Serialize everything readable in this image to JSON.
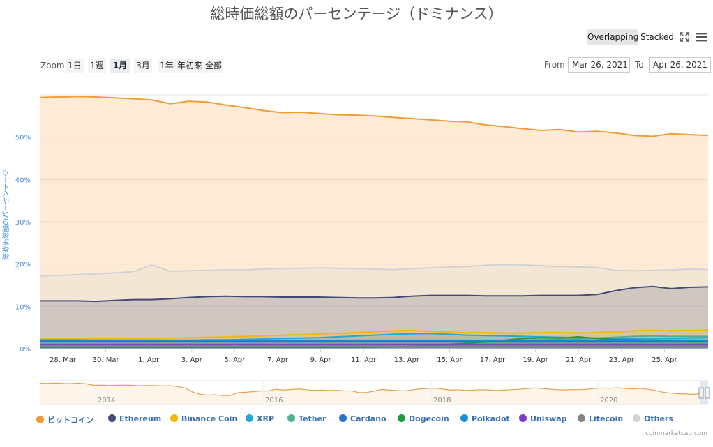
{
  "chart_data": {
    "type": "area",
    "title": "総時価総額のパーセンテージ（ドミナンス）",
    "ylabel": "総時価総額のパーセンテージ",
    "ylim": [
      0,
      60
    ],
    "y_ticks": [
      "0%",
      "10%",
      "20%",
      "30%",
      "40%",
      "50%"
    ],
    "x_ticks": [
      "28. Mar",
      "30. Mar",
      "1. Apr",
      "3. Apr",
      "5. Apr",
      "7. Apr",
      "9. Apr",
      "11. Apr",
      "13. Apr",
      "15. Apr",
      "17. Apr",
      "19. Apr",
      "21. Apr",
      "23. Apr",
      "25. Apr"
    ],
    "x_start": "2021-03-26",
    "x_end": "2021-04-26",
    "grid": true,
    "legend_position": "bottom",
    "series": [
      {
        "name": "ビットコイン",
        "color": "#f39c34",
        "values": [
          59.4,
          59.5,
          59.6,
          59.5,
          59.3,
          59.1,
          58.8,
          57.9,
          58.5,
          58.3,
          57.6,
          57.0,
          56.3,
          55.8,
          55.9,
          55.6,
          55.3,
          55.2,
          55.0,
          54.7,
          54.4,
          54.1,
          53.8,
          53.6,
          52.9,
          52.5,
          52.0,
          51.6,
          51.8,
          51.2,
          51.4,
          51.0,
          50.4,
          50.2,
          50.8,
          50.6,
          50.4
        ]
      },
      {
        "name": "Others",
        "color": "#d2d2d2",
        "values": [
          17.2,
          17.3,
          17.5,
          17.7,
          17.9,
          18.2,
          19.8,
          18.3,
          18.4,
          18.5,
          18.6,
          18.6,
          18.8,
          18.9,
          19.0,
          19.1,
          19.0,
          18.9,
          18.8,
          18.7,
          18.9,
          19.1,
          19.3,
          19.4,
          19.7,
          19.9,
          19.8,
          19.6,
          19.4,
          19.3,
          19.2,
          18.5,
          18.4,
          18.5,
          18.6,
          18.8,
          18.7
        ]
      },
      {
        "name": "Ethereum",
        "color": "#454a75",
        "values": [
          11.3,
          11.3,
          11.3,
          11.2,
          11.4,
          11.6,
          11.6,
          11.8,
          12.1,
          12.3,
          12.4,
          12.3,
          12.3,
          12.2,
          12.2,
          12.2,
          12.1,
          12.0,
          12.0,
          12.1,
          12.4,
          12.6,
          12.6,
          12.6,
          12.5,
          12.5,
          12.5,
          12.6,
          12.6,
          12.6,
          12.8,
          13.7,
          14.4,
          14.7,
          14.2,
          14.5,
          14.6
        ]
      },
      {
        "name": "Binance Coin",
        "color": "#f0b90b",
        "values": [
          2.3,
          2.3,
          2.3,
          2.3,
          2.4,
          2.4,
          2.4,
          2.5,
          2.6,
          2.7,
          2.8,
          2.9,
          3.0,
          3.2,
          3.3,
          3.5,
          3.6,
          3.8,
          4.0,
          4.2,
          4.3,
          4.1,
          3.9,
          3.8,
          3.8,
          3.7,
          3.7,
          3.8,
          3.8,
          3.7,
          3.8,
          4.0,
          4.2,
          4.3,
          4.2,
          4.3,
          4.4
        ]
      },
      {
        "name": "XRP",
        "color": "#23a7df",
        "values": [
          2.0,
          2.0,
          2.0,
          2.0,
          2.0,
          2.0,
          2.0,
          2.0,
          2.0,
          2.1,
          2.1,
          2.2,
          2.3,
          2.4,
          2.5,
          2.6,
          2.8,
          3.0,
          3.2,
          3.4,
          3.5,
          3.6,
          3.4,
          3.2,
          3.1,
          3.0,
          2.9,
          2.8,
          2.7,
          2.6,
          2.5,
          2.4,
          2.3,
          2.3,
          2.4,
          2.5,
          2.6
        ]
      },
      {
        "name": "Tether",
        "color": "#50af95",
        "values": [
          2.1,
          2.1,
          2.1,
          2.0,
          2.0,
          2.0,
          2.0,
          2.0,
          2.0,
          2.0,
          2.0,
          2.0,
          2.0,
          2.0,
          2.0,
          2.0,
          2.0,
          2.0,
          2.0,
          2.0,
          2.0,
          2.0,
          2.0,
          2.0,
          2.0,
          2.0,
          2.0,
          2.1,
          2.2,
          2.3,
          2.5,
          2.7,
          2.9,
          3.0,
          2.9,
          2.9,
          2.9
        ]
      },
      {
        "name": "Cardano",
        "color": "#2a71d0",
        "values": [
          1.7,
          1.7,
          1.7,
          1.7,
          1.7,
          1.7,
          1.7,
          1.7,
          1.7,
          1.7,
          1.7,
          1.7,
          1.7,
          1.7,
          1.7,
          1.7,
          1.7,
          1.7,
          1.7,
          1.7,
          1.7,
          1.7,
          1.7,
          1.7,
          1.7,
          1.7,
          1.7,
          1.7,
          1.7,
          1.7,
          1.7,
          1.7,
          1.7,
          1.7,
          1.7,
          1.7,
          1.7
        ]
      },
      {
        "name": "Dogecoin",
        "color": "#1a9e3f",
        "values": [
          0.3,
          0.3,
          0.3,
          0.3,
          0.3,
          0.3,
          0.3,
          0.3,
          0.3,
          0.3,
          0.3,
          0.3,
          0.3,
          0.3,
          0.3,
          0.3,
          0.3,
          0.3,
          0.4,
          0.5,
          0.6,
          0.8,
          1.0,
          1.3,
          1.6,
          2.0,
          2.4,
          2.6,
          2.5,
          2.8,
          2.4,
          2.2,
          2.1,
          1.9,
          2.0,
          2.0,
          2.0
        ]
      },
      {
        "name": "Polkadot",
        "color": "#1b8ed1",
        "values": [
          1.9,
          1.9,
          1.9,
          1.9,
          1.9,
          1.9,
          1.9,
          1.9,
          1.9,
          1.9,
          1.9,
          1.9,
          1.9,
          1.9,
          1.9,
          1.9,
          1.9,
          1.9,
          1.9,
          1.9,
          1.9,
          1.9,
          1.9,
          1.9,
          1.9,
          1.9,
          1.9,
          1.9,
          1.9,
          1.9,
          1.9,
          1.9,
          1.9,
          1.9,
          1.9,
          1.9,
          1.9
        ]
      },
      {
        "name": "Uniswap",
        "color": "#7e3ac9",
        "values": [
          1.0,
          1.0,
          1.0,
          1.0,
          1.0,
          1.0,
          1.0,
          1.0,
          1.0,
          1.0,
          1.0,
          1.0,
          1.0,
          1.0,
          1.0,
          1.0,
          1.0,
          1.0,
          1.0,
          1.0,
          1.0,
          1.0,
          1.0,
          1.0,
          1.0,
          1.0,
          1.0,
          1.0,
          1.0,
          1.0,
          1.0,
          1.0,
          1.0,
          1.0,
          1.0,
          1.0,
          1.0
        ]
      },
      {
        "name": "Litecoin",
        "color": "#838383",
        "values": [
          0.6,
          0.6,
          0.6,
          0.6,
          0.6,
          0.6,
          0.6,
          0.6,
          0.6,
          0.6,
          0.6,
          0.6,
          0.6,
          0.6,
          0.6,
          0.6,
          0.6,
          0.6,
          0.6,
          0.6,
          0.6,
          0.6,
          0.6,
          0.6,
          0.6,
          0.6,
          0.6,
          0.6,
          0.6,
          0.6,
          0.6,
          0.6,
          0.6,
          0.6,
          0.6,
          0.6,
          0.6
        ]
      }
    ],
    "navigator": {
      "x_labels": [
        "2014",
        "2016",
        "2018",
        "2020"
      ],
      "btc_values": [
        95,
        94,
        96,
        94,
        93,
        95,
        92,
        85,
        86,
        84,
        85,
        86,
        85,
        83,
        84,
        84,
        82,
        83,
        80,
        72,
        54,
        42,
        38,
        40,
        36,
        36,
        50,
        52,
        55,
        58,
        58,
        66,
        62,
        65,
        68,
        64,
        61,
        62,
        60,
        61,
        59,
        58,
        50,
        51,
        58,
        65,
        62,
        60,
        58,
        64,
        68,
        70,
        71,
        67,
        62,
        64,
        60,
        62,
        64,
        63,
        60,
        62,
        64,
        66,
        69,
        72,
        70,
        67,
        64,
        63,
        65,
        64,
        66,
        70,
        72,
        71,
        73,
        70,
        68,
        70,
        66,
        60,
        52,
        48,
        45,
        44,
        42,
        46
      ]
    }
  },
  "ui": {
    "mode_overlapping": "Overlapping",
    "mode_stacked": "Stacked",
    "zoom_label": "Zoom",
    "zoom_buttons": [
      "1日",
      "1週",
      "1月",
      "3月",
      "1年",
      "年初来",
      "全部"
    ],
    "zoom_active": "1月",
    "from_label": "From",
    "from_value": "Mar 26, 2021",
    "to_label": "To",
    "to_value": "Apr 26, 2021",
    "credit": "coinmarketcap.com"
  }
}
